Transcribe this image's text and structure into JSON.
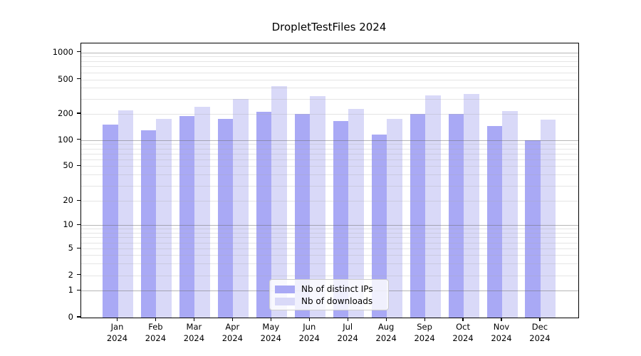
{
  "chart_data": {
    "type": "bar",
    "title": "DropletTestFiles 2024",
    "categories": [
      "Jan",
      "Feb",
      "Mar",
      "Apr",
      "May",
      "Jun",
      "Jul",
      "Aug",
      "Sep",
      "Oct",
      "Nov",
      "Dec"
    ],
    "x_year_label": "2024",
    "series": [
      {
        "name": "Nb of distinct IPs",
        "color": "#a9a9f5",
        "values": [
          150,
          130,
          190,
          175,
          210,
          200,
          165,
          115,
          200,
          200,
          145,
          100
        ]
      },
      {
        "name": "Nb of downloads",
        "color": "#d9d9f8",
        "values": [
          220,
          175,
          240,
          300,
          420,
          320,
          230,
          175,
          330,
          340,
          215,
          172
        ]
      }
    ],
    "xlabel": "",
    "ylabel": "",
    "yscale": "symlog",
    "y_ticks": [
      0,
      1,
      2,
      5,
      10,
      20,
      50,
      100,
      200,
      500,
      1000
    ],
    "ylim": [
      0,
      1100
    ],
    "grid": true,
    "legend_position": "lower center"
  }
}
